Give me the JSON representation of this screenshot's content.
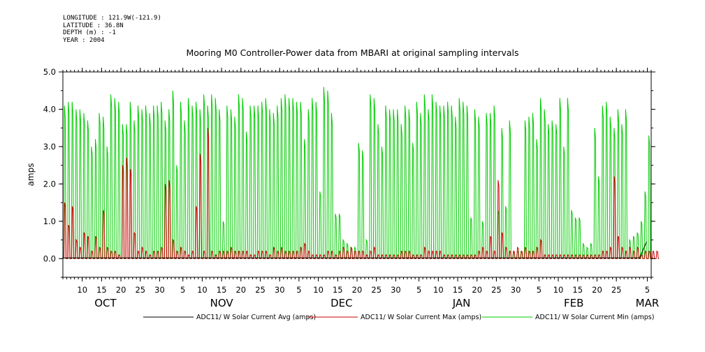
{
  "header": {
    "longitude": "LONGITUDE : 121.9W(-121.9)",
    "latitude": "LATITUDE : 36.8N",
    "depth": "DEPTH (m) : -1",
    "year": "YEAR : 2004"
  },
  "chart_data": {
    "type": "line",
    "title": "Mooring M0 Controller-Power data from MBARI at original sampling intervals",
    "ylabel": "amps",
    "xlabel": "",
    "ylim": [
      -0.5,
      5.0
    ],
    "xlim": [
      "2004-10-05",
      "2005-03-06"
    ],
    "y_ticks": [
      "5.0",
      "4.0",
      "3.0",
      "2.0",
      "1.0",
      "0.0"
    ],
    "y_tick_values": [
      5,
      4,
      3,
      2,
      1,
      0
    ],
    "x_tick_labels": [
      {
        "date": "2004-10-10",
        "label": "10"
      },
      {
        "date": "2004-10-15",
        "label": "15"
      },
      {
        "date": "2004-10-20",
        "label": "20"
      },
      {
        "date": "2004-10-25",
        "label": "25"
      },
      {
        "date": "2004-10-30",
        "label": "30"
      },
      {
        "date": "2004-11-05",
        "label": "5"
      },
      {
        "date": "2004-11-10",
        "label": "10"
      },
      {
        "date": "2004-11-15",
        "label": "15"
      },
      {
        "date": "2004-11-20",
        "label": "20"
      },
      {
        "date": "2004-11-25",
        "label": "25"
      },
      {
        "date": "2004-11-30",
        "label": "30"
      },
      {
        "date": "2004-12-05",
        "label": "5"
      },
      {
        "date": "2004-12-10",
        "label": "10"
      },
      {
        "date": "2004-12-15",
        "label": "15"
      },
      {
        "date": "2004-12-20",
        "label": "20"
      },
      {
        "date": "2004-12-25",
        "label": "25"
      },
      {
        "date": "2004-12-30",
        "label": "30"
      },
      {
        "date": "2005-01-05",
        "label": "5"
      },
      {
        "date": "2005-01-10",
        "label": "10"
      },
      {
        "date": "2005-01-15",
        "label": "15"
      },
      {
        "date": "2005-01-20",
        "label": "20"
      },
      {
        "date": "2005-01-25",
        "label": "25"
      },
      {
        "date": "2005-01-30",
        "label": "30"
      },
      {
        "date": "2005-02-05",
        "label": "5"
      },
      {
        "date": "2005-02-10",
        "label": "10"
      },
      {
        "date": "2005-02-15",
        "label": "15"
      },
      {
        "date": "2005-02-20",
        "label": "20"
      },
      {
        "date": "2005-02-25",
        "label": "25"
      },
      {
        "date": "2005-03-05",
        "label": "5"
      }
    ],
    "months": [
      {
        "date": "2004-10-16",
        "label": "OCT"
      },
      {
        "date": "2004-11-15",
        "label": "NOV"
      },
      {
        "date": "2004-12-16",
        "label": "DEC"
      },
      {
        "date": "2005-01-16",
        "label": "JAN"
      },
      {
        "date": "2005-02-14",
        "label": "FEB"
      },
      {
        "date": "2005-03-05",
        "label": "MAR"
      }
    ],
    "series": [
      {
        "name": "ADC11/ W Solar Current Avg (amps)",
        "color": "#000000",
        "note": "near zero throughout; small ramp to ~0.45 at end of record",
        "values": [
          0.0,
          0.45
        ]
      },
      {
        "name": "ADC11/ W Solar Current Max (amps)",
        "color": "#cc0000",
        "daily_peaks": [
          1.5,
          0.9,
          1.4,
          0.5,
          0.3,
          0.7,
          0.6,
          0.2,
          0.6,
          0.3,
          1.3,
          0.3,
          0.2,
          0.2,
          0.1,
          2.5,
          2.7,
          2.4,
          0.7,
          0.2,
          0.3,
          0.2,
          0.1,
          0.2,
          0.2,
          0.3,
          2.0,
          2.1,
          0.5,
          0.2,
          0.3,
          0.2,
          0.1,
          0.2,
          1.4,
          2.8,
          0.2,
          3.5,
          0.2,
          0.1,
          0.2,
          0.2,
          0.2,
          0.3,
          0.2,
          0.2,
          0.2,
          0.2,
          0.1,
          0.1,
          0.2,
          0.2,
          0.2,
          0.1,
          0.3,
          0.2,
          0.3,
          0.2,
          0.2,
          0.2,
          0.2,
          0.3,
          0.4,
          0.2,
          0.1,
          0.1,
          0.1,
          0.1,
          0.2,
          0.2,
          0.1,
          0.2,
          0.3,
          0.2,
          0.3,
          0.2,
          0.2,
          0.2,
          0.1,
          0.2,
          0.3,
          0.1,
          0.1,
          0.1,
          0.1,
          0.1,
          0.1,
          0.2,
          0.2,
          0.2,
          0.1,
          0.1,
          0.1,
          0.3,
          0.2,
          0.2,
          0.2,
          0.2,
          0.1,
          0.1,
          0.1,
          0.1,
          0.1,
          0.1,
          0.1,
          0.1,
          0.1,
          0.2,
          0.3,
          0.2,
          0.6,
          0.2,
          2.1,
          0.7,
          0.3,
          0.2,
          0.2,
          0.3,
          0.2,
          0.3,
          0.2,
          0.2,
          0.3,
          0.5,
          0.1,
          0.1,
          0.1,
          0.1,
          0.1,
          0.1,
          0.1,
          0.1,
          0.1,
          0.1,
          0.1,
          0.1,
          0.1,
          0.1,
          0.1,
          0.2,
          0.2,
          0.3,
          2.2,
          0.6,
          0.3,
          0.2,
          0.3,
          0.2,
          0.3,
          0.1,
          0.2,
          0.2,
          0.2,
          0.2
        ]
      },
      {
        "name": "ADC11/ W Solar Current Min (amps)",
        "color": "#00cc00",
        "daily_peaks": [
          4.1,
          4.2,
          4.2,
          4.0,
          4.0,
          3.9,
          3.7,
          3.0,
          3.2,
          3.9,
          3.8,
          3.0,
          4.4,
          4.3,
          4.2,
          3.6,
          3.6,
          4.2,
          3.7,
          4.1,
          4.0,
          4.1,
          3.9,
          4.1,
          4.1,
          4.2,
          3.7,
          4.0,
          4.5,
          2.5,
          4.2,
          3.7,
          4.3,
          4.1,
          4.2,
          4.0,
          4.4,
          4.1,
          4.4,
          4.3,
          4.0,
          1.0,
          4.1,
          4.0,
          3.8,
          4.4,
          4.3,
          3.4,
          4.1,
          4.1,
          4.1,
          4.2,
          4.3,
          4.0,
          3.9,
          4.1,
          4.3,
          4.4,
          4.3,
          4.3,
          4.2,
          4.2,
          3.2,
          4.0,
          4.3,
          4.2,
          1.8,
          4.6,
          4.5,
          3.9,
          1.2,
          1.2,
          0.5,
          0.4,
          0.3,
          0.3,
          3.1,
          2.9,
          0.5,
          4.4,
          4.3,
          3.6,
          3.0,
          4.1,
          4.0,
          4.0,
          4.0,
          3.6,
          4.1,
          4.0,
          3.1,
          4.2,
          3.9,
          4.4,
          4.0,
          4.4,
          4.2,
          4.1,
          4.1,
          4.2,
          4.1,
          3.8,
          4.3,
          4.2,
          4.1,
          1.1,
          4.0,
          3.8,
          1.0,
          3.9,
          3.9,
          4.1,
          1.3,
          3.5,
          1.4,
          3.7,
          0.2,
          0.2,
          0.2,
          3.7,
          3.8,
          3.9,
          3.2,
          4.3,
          4.0,
          3.6,
          3.7,
          3.6,
          4.3,
          3.0,
          4.3,
          1.3,
          1.1,
          1.1,
          0.4,
          0.3,
          0.4,
          3.5,
          2.2,
          4.1,
          4.2,
          3.8,
          3.5,
          4.0,
          3.6,
          4.0,
          0.5,
          0.6,
          0.7,
          1.0,
          1.8,
          3.3
        ]
      }
    ],
    "legend_placement": "bottom",
    "grid": false
  },
  "colors": {
    "avg": "#000000",
    "max": "#cc0000",
    "min": "#00cc00",
    "axis": "#000000",
    "background": "#ffffff"
  }
}
